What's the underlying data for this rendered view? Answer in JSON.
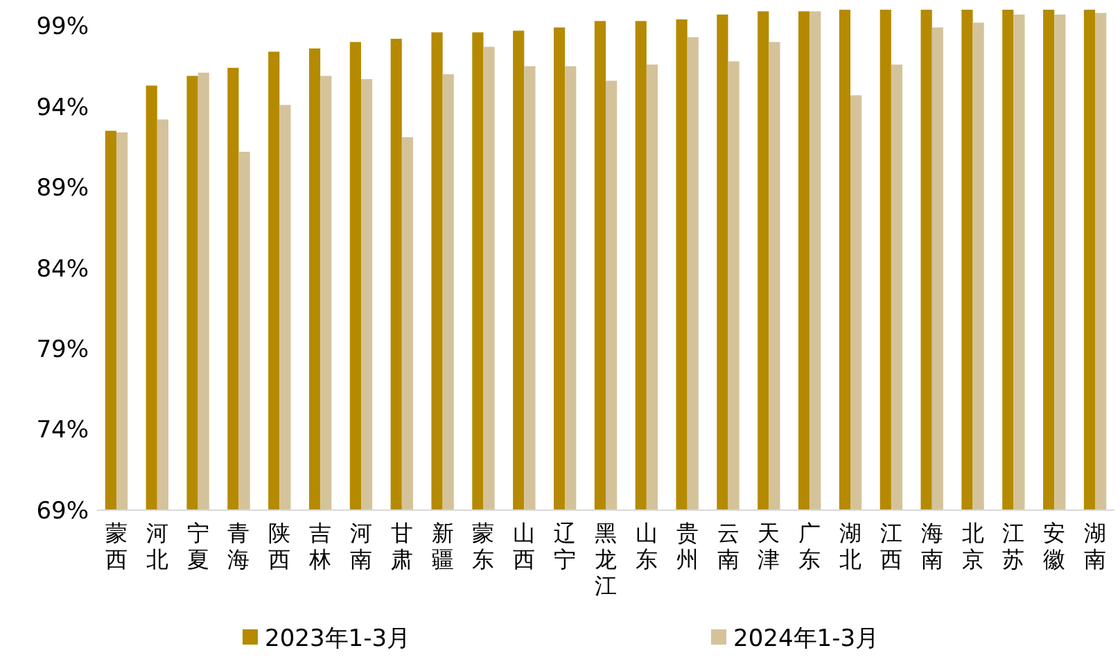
{
  "chart_data": {
    "type": "bar",
    "categories": [
      "蒙西",
      "河北",
      "宁夏",
      "青海",
      "陕西",
      "吉林",
      "河南",
      "甘肃",
      "新疆",
      "蒙东",
      "山西",
      "辽宁",
      "黑龙江",
      "山东",
      "贵州",
      "云南",
      "天津",
      "广东",
      "湖北",
      "江西",
      "海南",
      "北京",
      "江苏",
      "安徽",
      "湖南"
    ],
    "series": [
      {
        "name": "2023年1-3月",
        "color": "#b58a00",
        "values": [
          92.5,
          95.3,
          95.9,
          96.4,
          97.4,
          97.6,
          98.0,
          98.2,
          98.6,
          98.6,
          98.7,
          98.9,
          99.3,
          99.3,
          99.4,
          99.7,
          99.9,
          99.9,
          100.0,
          100.0,
          100.0,
          100.0,
          100.0,
          100.0,
          100.0
        ]
      },
      {
        "name": "2024年1-3月",
        "color": "#d4c39a",
        "values": [
          92.4,
          93.2,
          96.1,
          91.2,
          94.1,
          95.9,
          95.7,
          92.1,
          96.0,
          97.7,
          96.5,
          96.5,
          95.6,
          96.6,
          98.3,
          96.8,
          98.0,
          99.9,
          94.7,
          96.6,
          98.9,
          99.2,
          99.7,
          99.7,
          99.8
        ]
      }
    ],
    "ylim": [
      69,
      100
    ],
    "yticks": [
      {
        "value": 69,
        "label": "69%"
      },
      {
        "value": 74,
        "label": "74%"
      },
      {
        "value": 79,
        "label": "79%"
      },
      {
        "value": 84,
        "label": "84%"
      },
      {
        "value": 89,
        "label": "89%"
      },
      {
        "value": 94,
        "label": "94%"
      },
      {
        "value": 99,
        "label": "99%"
      }
    ],
    "grid": false,
    "legend": "bottom"
  }
}
